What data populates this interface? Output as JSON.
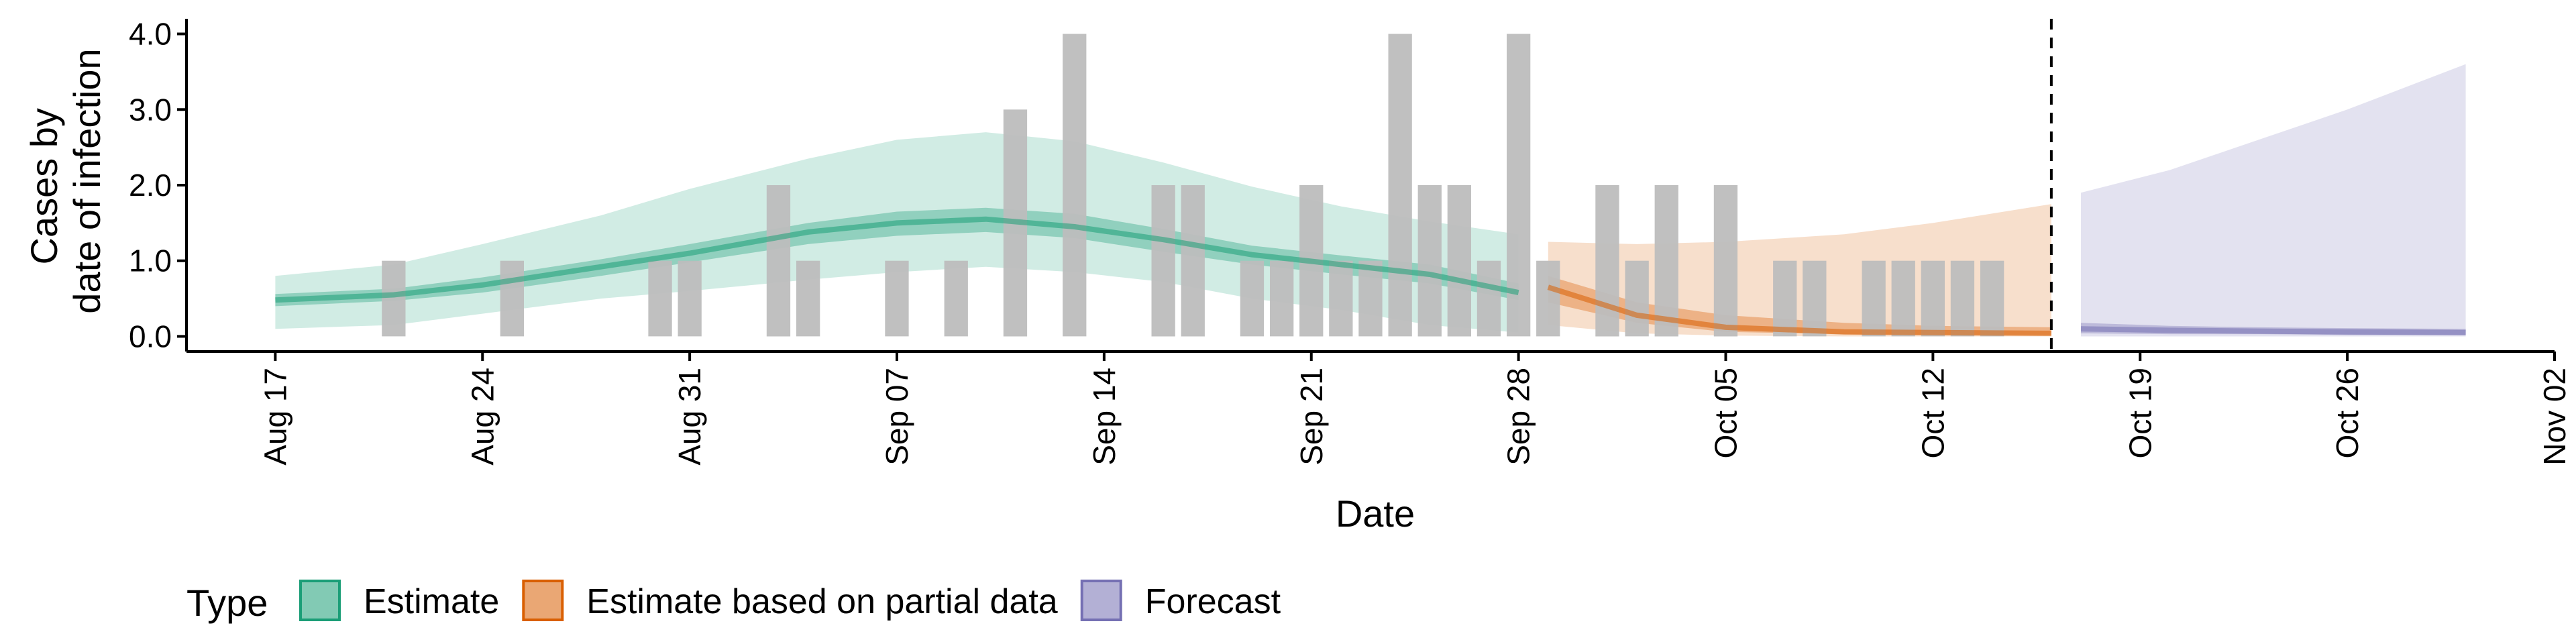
{
  "chart_data": {
    "type": "area",
    "title": "",
    "xlabel": "Date",
    "ylabel_lines": [
      "Cases by",
      "date of infection"
    ],
    "x_type": "date",
    "xlim": [
      "2020-08-14",
      "2020-11-02"
    ],
    "ylim": [
      -0.2,
      4.2
    ],
    "x_ticks": [
      {
        "date": "2020-08-17",
        "label": "Aug 17"
      },
      {
        "date": "2020-08-24",
        "label": "Aug 24"
      },
      {
        "date": "2020-08-31",
        "label": "Aug 31"
      },
      {
        "date": "2020-09-07",
        "label": "Sep 07"
      },
      {
        "date": "2020-09-14",
        "label": "Sep 14"
      },
      {
        "date": "2020-09-21",
        "label": "Sep 21"
      },
      {
        "date": "2020-09-28",
        "label": "Sep 28"
      },
      {
        "date": "2020-10-05",
        "label": "Oct 05"
      },
      {
        "date": "2020-10-12",
        "label": "Oct 12"
      },
      {
        "date": "2020-10-19",
        "label": "Oct 19"
      },
      {
        "date": "2020-10-26",
        "label": "Oct 26"
      },
      {
        "date": "2020-11-02",
        "label": "Nov 02"
      }
    ],
    "y_ticks": [
      {
        "value": 0,
        "label": "0.0"
      },
      {
        "value": 1,
        "label": "1.0"
      },
      {
        "value": 2,
        "label": "2.0"
      },
      {
        "value": 3,
        "label": "3.0"
      },
      {
        "value": 4,
        "label": "4.0"
      }
    ],
    "grid": false,
    "legend_position": "bottom-left",
    "legend_title": "Type",
    "forecast_line_date": "2020-10-16",
    "observed_cases": {
      "color": "#bdbdbd",
      "bars": [
        {
          "date": "2020-08-21",
          "value": 1
        },
        {
          "date": "2020-08-25",
          "value": 1
        },
        {
          "date": "2020-08-30",
          "value": 1
        },
        {
          "date": "2020-08-31",
          "value": 1
        },
        {
          "date": "2020-09-03",
          "value": 2
        },
        {
          "date": "2020-09-04",
          "value": 1
        },
        {
          "date": "2020-09-07",
          "value": 1
        },
        {
          "date": "2020-09-09",
          "value": 1
        },
        {
          "date": "2020-09-11",
          "value": 3
        },
        {
          "date": "2020-09-13",
          "value": 4
        },
        {
          "date": "2020-09-16",
          "value": 2
        },
        {
          "date": "2020-09-17",
          "value": 2
        },
        {
          "date": "2020-09-19",
          "value": 1
        },
        {
          "date": "2020-09-20",
          "value": 1
        },
        {
          "date": "2020-09-21",
          "value": 2
        },
        {
          "date": "2020-09-22",
          "value": 1
        },
        {
          "date": "2020-09-23",
          "value": 1
        },
        {
          "date": "2020-09-24",
          "value": 4
        },
        {
          "date": "2020-09-25",
          "value": 2
        },
        {
          "date": "2020-09-26",
          "value": 2
        },
        {
          "date": "2020-09-27",
          "value": 1
        },
        {
          "date": "2020-09-28",
          "value": 4
        },
        {
          "date": "2020-09-29",
          "value": 1
        },
        {
          "date": "2020-10-01",
          "value": 2
        },
        {
          "date": "2020-10-02",
          "value": 1
        },
        {
          "date": "2020-10-03",
          "value": 2
        },
        {
          "date": "2020-10-05",
          "value": 2
        },
        {
          "date": "2020-10-07",
          "value": 1
        },
        {
          "date": "2020-10-08",
          "value": 1
        },
        {
          "date": "2020-10-10",
          "value": 1
        },
        {
          "date": "2020-10-11",
          "value": 1
        },
        {
          "date": "2020-10-12",
          "value": 1
        },
        {
          "date": "2020-10-13",
          "value": 1
        },
        {
          "date": "2020-10-14",
          "value": 1
        }
      ]
    },
    "series": [
      {
        "name": "Estimate",
        "color": "#1b9e77",
        "dates": [
          "2020-08-17",
          "2020-08-21",
          "2020-08-24",
          "2020-08-28",
          "2020-08-31",
          "2020-09-04",
          "2020-09-07",
          "2020-09-10",
          "2020-09-13",
          "2020-09-16",
          "2020-09-19",
          "2020-09-22",
          "2020-09-25",
          "2020-09-28"
        ],
        "median": [
          0.48,
          0.55,
          0.68,
          0.92,
          1.1,
          1.38,
          1.5,
          1.55,
          1.45,
          1.28,
          1.08,
          0.95,
          0.82,
          0.58
        ],
        "ci50_lower": [
          0.4,
          0.47,
          0.58,
          0.8,
          0.98,
          1.22,
          1.33,
          1.38,
          1.3,
          1.12,
          0.95,
          0.82,
          0.7,
          0.48
        ],
        "ci50_upper": [
          0.56,
          0.63,
          0.78,
          1.02,
          1.22,
          1.5,
          1.65,
          1.7,
          1.62,
          1.42,
          1.2,
          1.07,
          0.95,
          0.7
        ],
        "ci90_lower": [
          0.1,
          0.15,
          0.3,
          0.5,
          0.6,
          0.75,
          0.85,
          0.92,
          0.85,
          0.72,
          0.5,
          0.35,
          0.15,
          0.05
        ],
        "ci90_upper": [
          0.8,
          0.95,
          1.22,
          1.6,
          1.95,
          2.35,
          2.6,
          2.7,
          2.58,
          2.3,
          1.98,
          1.72,
          1.52,
          1.35
        ]
      },
      {
        "name": "Estimate based on partial data",
        "color": "#d95f02",
        "dates": [
          "2020-09-29",
          "2020-10-02",
          "2020-10-05",
          "2020-10-09",
          "2020-10-12",
          "2020-10-16"
        ],
        "median": [
          0.65,
          0.28,
          0.12,
          0.06,
          0.05,
          0.04
        ],
        "ci50_lower": [
          0.45,
          0.18,
          0.06,
          0.03,
          0.02,
          0.02
        ],
        "ci50_upper": [
          0.8,
          0.45,
          0.28,
          0.18,
          0.14,
          0.12
        ],
        "ci90_lower": [
          0.15,
          0.04,
          0.01,
          0.0,
          0.0,
          0.0
        ],
        "ci90_upper": [
          1.25,
          1.22,
          1.25,
          1.35,
          1.5,
          1.75
        ]
      },
      {
        "name": "Forecast",
        "color": "#7570b3",
        "dates": [
          "2020-10-17",
          "2020-10-20",
          "2020-10-23",
          "2020-10-26",
          "2020-10-30"
        ],
        "median": [
          0.1,
          0.08,
          0.07,
          0.06,
          0.05
        ],
        "ci50_lower": [
          0.04,
          0.03,
          0.03,
          0.02,
          0.02
        ],
        "ci50_upper": [
          0.18,
          0.14,
          0.12,
          0.11,
          0.1
        ],
        "ci90_lower": [
          0.0,
          0.0,
          0.0,
          0.0,
          0.0
        ],
        "ci90_upper": [
          1.9,
          2.2,
          2.6,
          3.0,
          3.6
        ]
      }
    ]
  }
}
